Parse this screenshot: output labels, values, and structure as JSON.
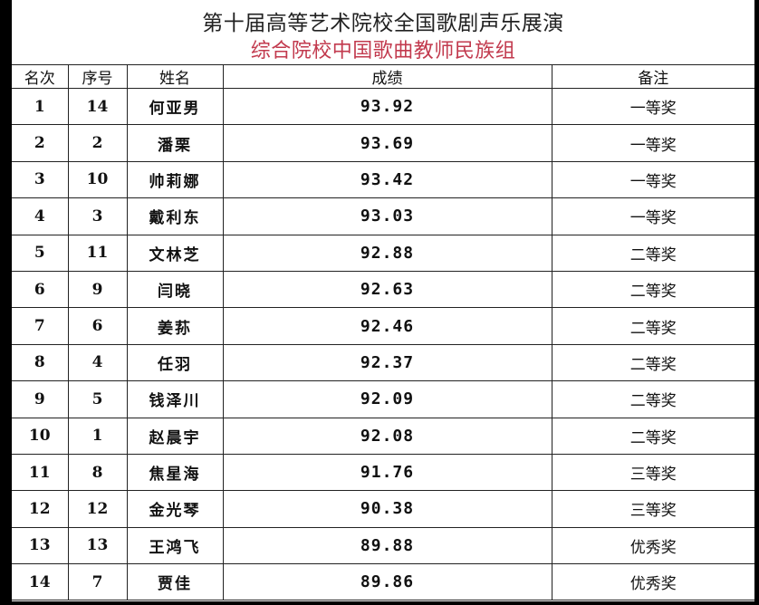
{
  "title": "第十届高等艺术院校全国歌剧声乐展演",
  "subtitle": "综合院校中国歌曲教师民族组",
  "colors": {
    "subtitle": "#c23a4e"
  },
  "headers": [
    "名次",
    "序号",
    "姓名",
    "成绩",
    "备注"
  ],
  "rows": [
    [
      "1",
      "14",
      "何亚男",
      "93.92",
      "一等奖"
    ],
    [
      "2",
      "2",
      "潘栗",
      "93.69",
      "一等奖"
    ],
    [
      "3",
      "10",
      "帅莉娜",
      "93.42",
      "一等奖"
    ],
    [
      "4",
      "3",
      "戴利东",
      "93.03",
      "一等奖"
    ],
    [
      "5",
      "11",
      "文林芝",
      "92.88",
      "二等奖"
    ],
    [
      "6",
      "9",
      "闫晓",
      "92.63",
      "二等奖"
    ],
    [
      "7",
      "6",
      "姜荪",
      "92.46",
      "二等奖"
    ],
    [
      "8",
      "4",
      "任羽",
      "92.37",
      "二等奖"
    ],
    [
      "9",
      "5",
      "钱泽川",
      "92.09",
      "二等奖"
    ],
    [
      "10",
      "1",
      "赵晨宇",
      "92.08",
      "二等奖"
    ],
    [
      "11",
      "8",
      "焦星海",
      "91.76",
      "三等奖"
    ],
    [
      "12",
      "12",
      "金光琴",
      "90.38",
      "三等奖"
    ],
    [
      "13",
      "13",
      "王鸿飞",
      "89.88",
      "优秀奖"
    ],
    [
      "14",
      "7",
      "贾佳",
      "89.86",
      "优秀奖"
    ]
  ]
}
